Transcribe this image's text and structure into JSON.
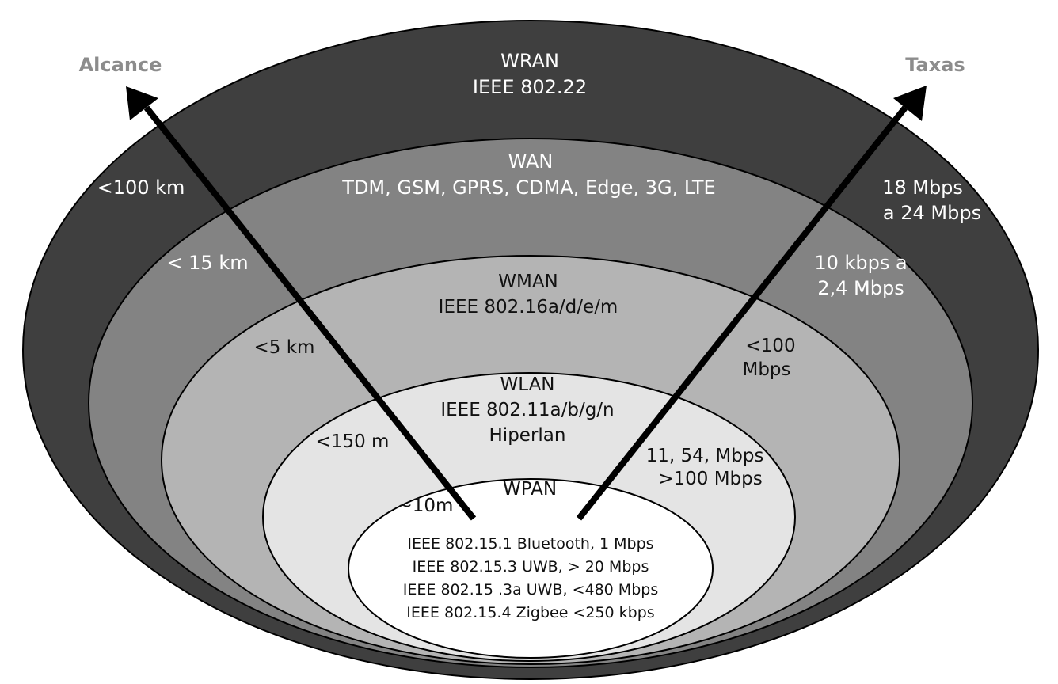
{
  "axes": {
    "range_label": "Alcance",
    "rate_label": "Taxas"
  },
  "layers": [
    {
      "name": "WRAN",
      "standard": "IEEE 802.22",
      "range": "<100 km",
      "rate_line1": "18 Mbps",
      "rate_line2": "a 24 Mbps",
      "color": "#3f3f3f"
    },
    {
      "name": "WAN",
      "standard": "TDM, GSM, GPRS, CDMA, Edge, 3G, LTE",
      "range": "< 15 km",
      "rate_line1": "10 kbps a",
      "rate_line2": "2,4 Mbps",
      "color": "#838383"
    },
    {
      "name": "WMAN",
      "standard": "IEEE  802.16a/d/e/m",
      "range": "<5 km",
      "rate_line1": "<100",
      "rate_line2": "Mbps",
      "color": "#b4b4b4"
    },
    {
      "name": "WLAN",
      "standard": "IEEE 802.11a/b/g/n",
      "standard2": "Hiperlan",
      "range": "<150 m",
      "rate_line1": "11, 54, Mbps",
      "rate_line2": ">100 Mbps",
      "color": "#e4e4e4"
    },
    {
      "name": "WPAN",
      "range": "~10m",
      "color": "#ffffff",
      "items": [
        "IEEE 802.15.1 Bluetooth, 1 Mbps",
        "IEEE 802.15.3 UWB, > 20 Mbps",
        "IEEE 802.15 .3a UWB, <480 Mbps",
        "IEEE 802.15.4 Zigbee <250 kbps"
      ]
    }
  ]
}
